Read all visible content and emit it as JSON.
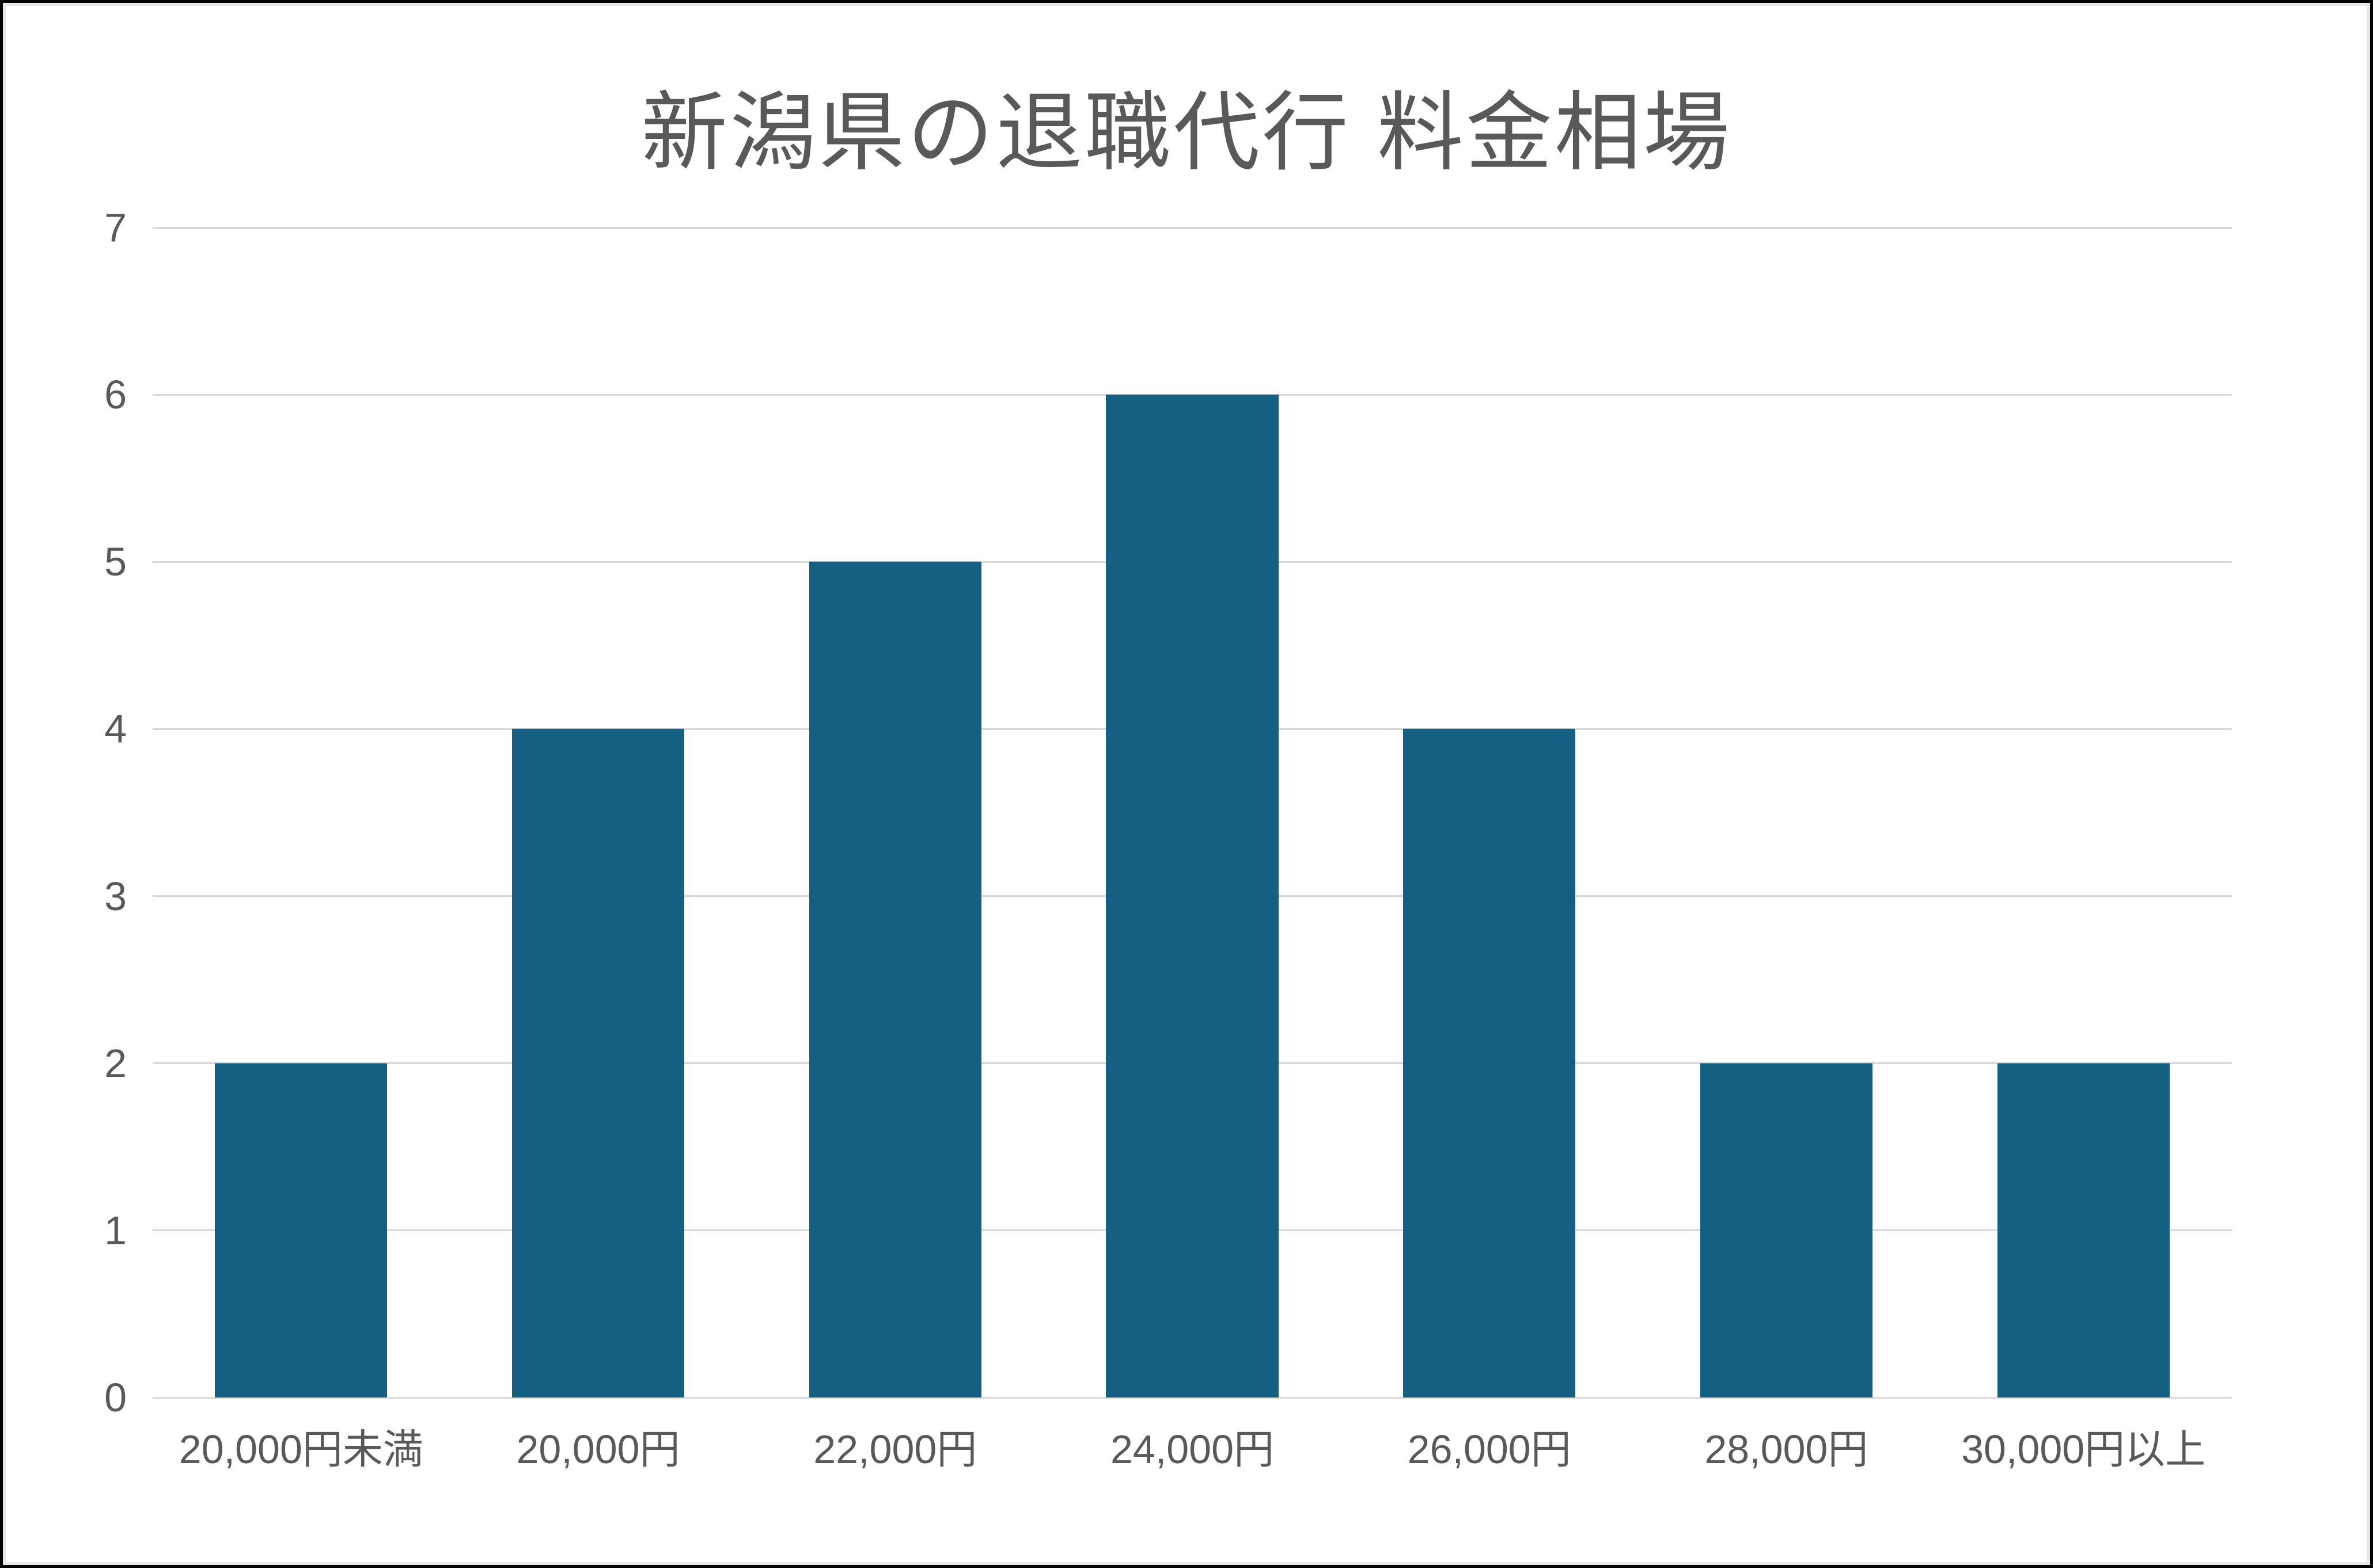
{
  "chart_data": {
    "type": "bar",
    "title": "新潟県の退職代行 料金相場",
    "categories": [
      "20,000円未満",
      "20,000円",
      "22,000円",
      "24,000円",
      "26,000円",
      "28,000円",
      "30,000円以上"
    ],
    "values": [
      2,
      4,
      5,
      6,
      4,
      2,
      2
    ],
    "xlabel": "",
    "ylabel": "",
    "ylim": [
      0,
      7
    ],
    "yticks": [
      0,
      1,
      2,
      3,
      4,
      5,
      6,
      7
    ],
    "grid": true,
    "legend": false,
    "bar_color": "#155F82",
    "gridline_color": "#D9D9D9",
    "axis_line_color": "#D9D9D9",
    "text_color": "#595959",
    "background_color": "#FFFFFF",
    "frame_border_color": "#000000"
  }
}
